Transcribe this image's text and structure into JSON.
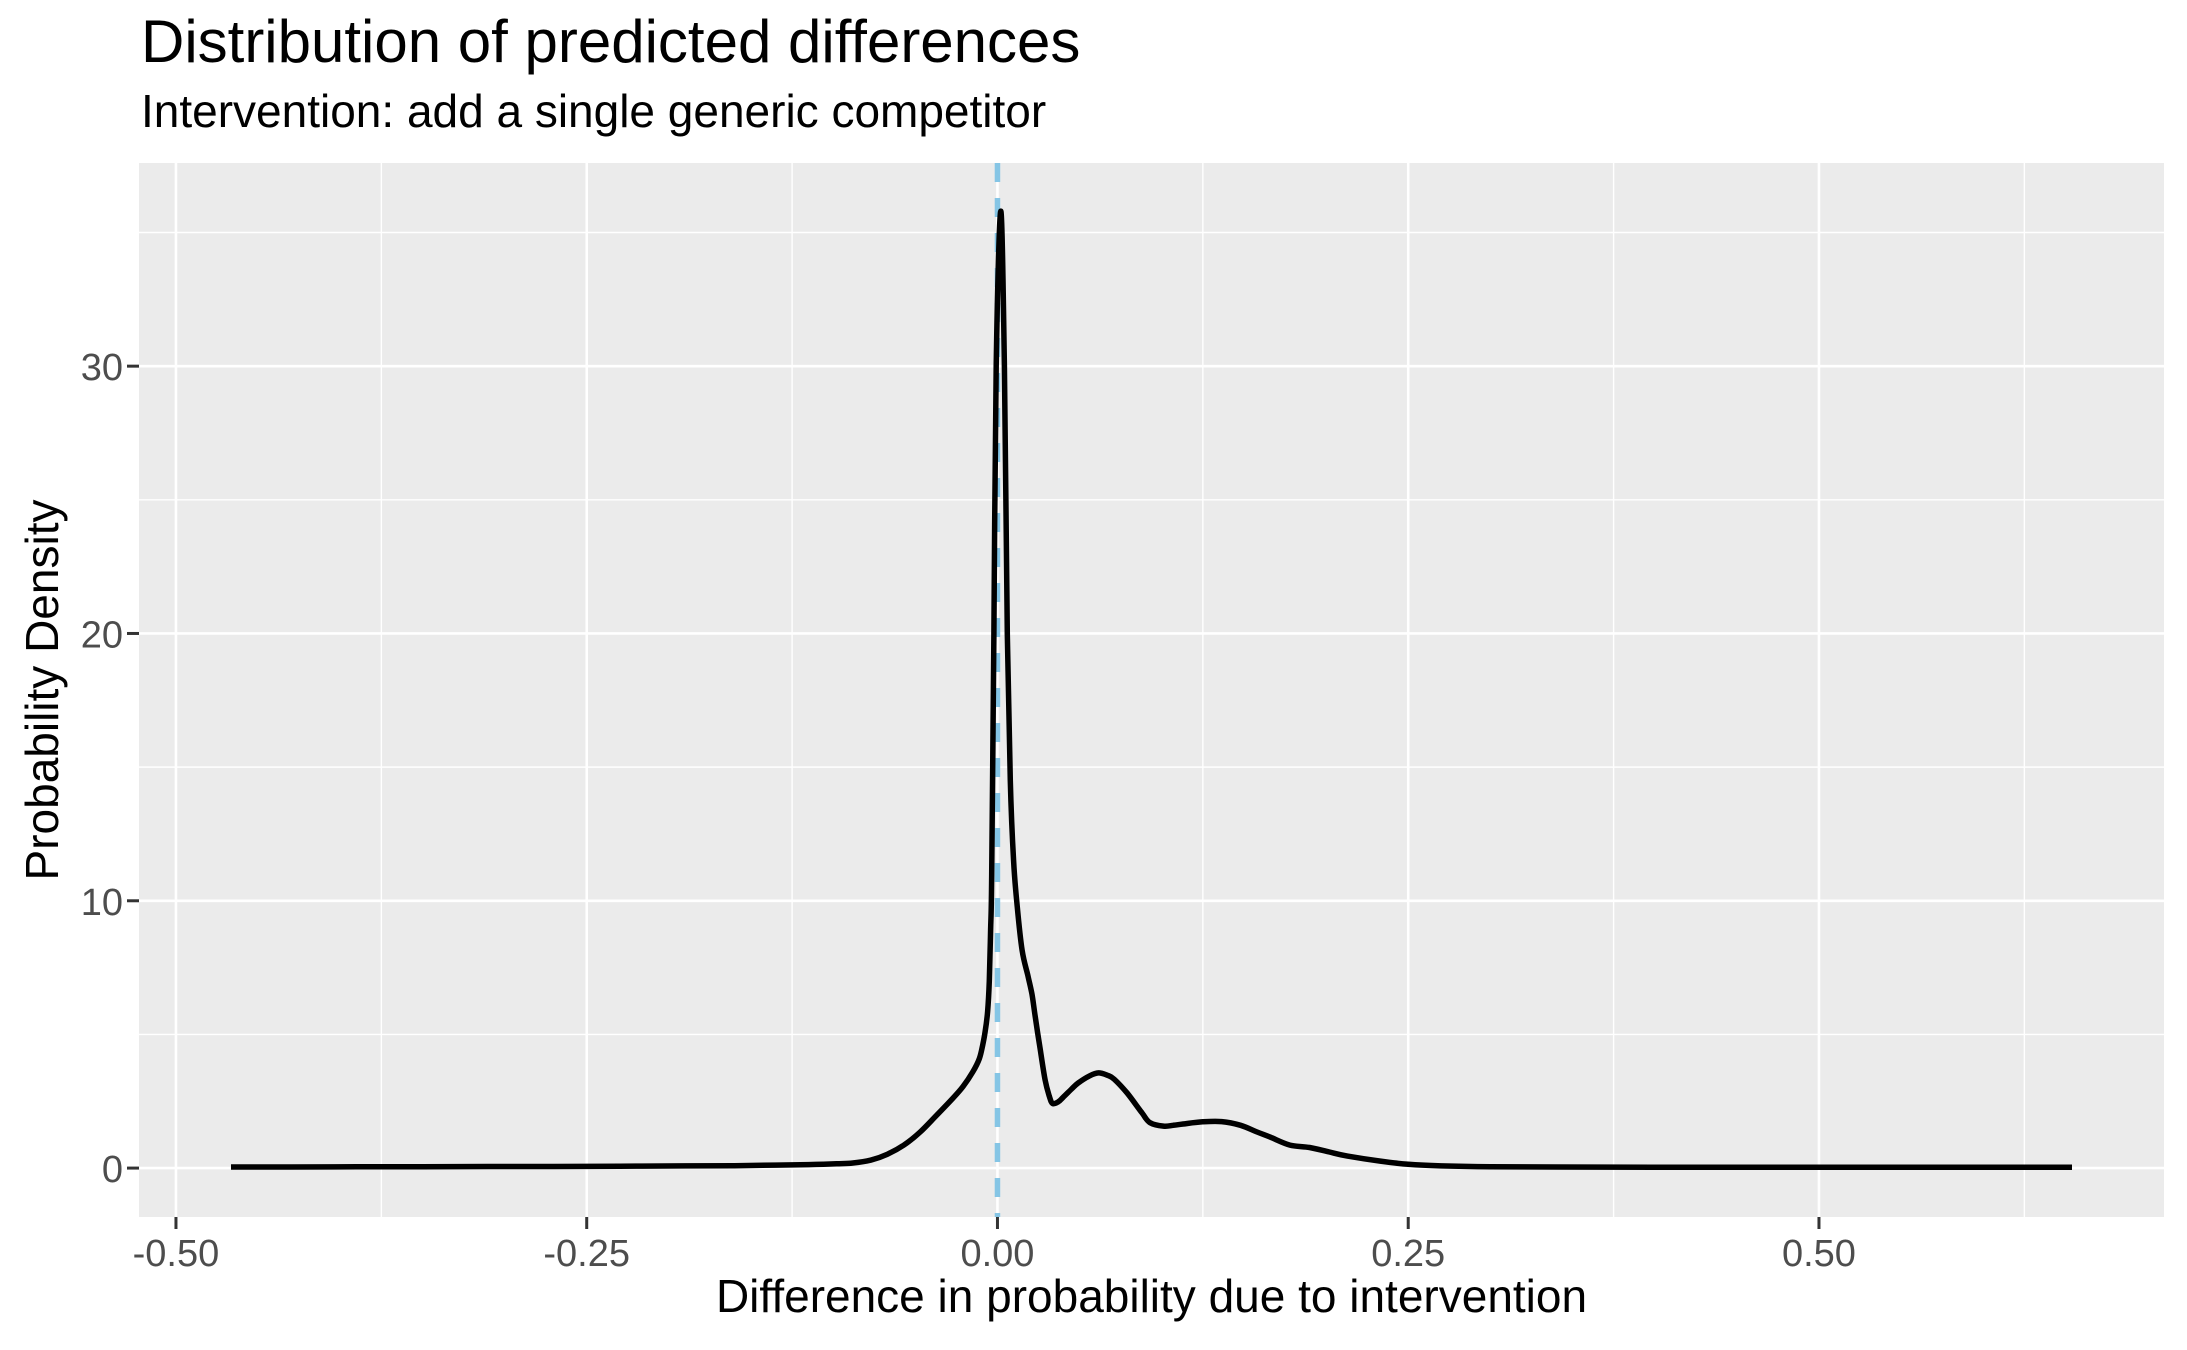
{
  "chart_data": {
    "type": "line",
    "title": "Distribution of predicted differences",
    "subtitle": "Intervention: add a single generic competitor",
    "xlabel": "Difference in probability due to intervention",
    "ylabel": "Probability Density",
    "legend": "none",
    "grid": "major-and-minor",
    "x_axis": {
      "tick_values": [
        -0.5,
        -0.25,
        0,
        0.25,
        0.5
      ],
      "tick_labels": [
        "-0.50",
        "-0.25",
        "0.00",
        "0.25",
        "0.50"
      ],
      "minor_tick_values": [
        -0.375,
        -0.125,
        0.125,
        0.375,
        0.625
      ],
      "lim": [
        -0.5225,
        0.71
      ]
    },
    "y_axis": {
      "tick_values": [
        0,
        10,
        20,
        30
      ],
      "tick_labels": [
        "0",
        "10",
        "20",
        "30"
      ],
      "minor_tick_values": [
        5,
        15,
        25,
        35
      ],
      "lim": [
        -1.83,
        37.6
      ]
    },
    "reference_line": {
      "x": 0,
      "linetype": "dashed",
      "color": "#85C5E5"
    },
    "peak": {
      "x": 0.002,
      "density": 35.8
    },
    "series": [
      {
        "name": "predicted-difference-density",
        "color": "#000000",
        "points": [
          [
            -0.4665,
            0.04
          ],
          [
            -0.43,
            0.04
          ],
          [
            -0.39,
            0.05
          ],
          [
            -0.35,
            0.05
          ],
          [
            -0.31,
            0.06
          ],
          [
            -0.27,
            0.06
          ],
          [
            -0.23,
            0.07
          ],
          [
            -0.19,
            0.08
          ],
          [
            -0.16,
            0.09
          ],
          [
            -0.135,
            0.11
          ],
          [
            -0.115,
            0.13
          ],
          [
            -0.098,
            0.16
          ],
          [
            -0.088,
            0.19
          ],
          [
            -0.077,
            0.3
          ],
          [
            -0.067,
            0.52
          ],
          [
            -0.057,
            0.86
          ],
          [
            -0.047,
            1.35
          ],
          [
            -0.037,
            1.98
          ],
          [
            -0.027,
            2.62
          ],
          [
            -0.021,
            3.05
          ],
          [
            -0.015,
            3.6
          ],
          [
            -0.011,
            4.1
          ],
          [
            -0.009,
            4.6
          ],
          [
            -0.0075,
            5.1
          ],
          [
            -0.006,
            5.85
          ],
          [
            -0.005,
            7.0
          ],
          [
            -0.0042,
            8.9
          ],
          [
            -0.0035,
            11.0
          ],
          [
            -0.0022,
            20.0
          ],
          [
            -0.0008,
            30.0
          ],
          [
            0.002,
            35.8
          ],
          [
            0.0042,
            30.0
          ],
          [
            0.006,
            20.0
          ],
          [
            0.0078,
            14.5
          ],
          [
            0.0098,
            11.5
          ],
          [
            0.012,
            9.8
          ],
          [
            0.015,
            8.15
          ],
          [
            0.0185,
            7.2
          ],
          [
            0.021,
            6.5
          ],
          [
            0.023,
            5.65
          ],
          [
            0.026,
            4.45
          ],
          [
            0.029,
            3.3
          ],
          [
            0.0315,
            2.7
          ],
          [
            0.0335,
            2.42
          ],
          [
            0.037,
            2.48
          ],
          [
            0.04,
            2.65
          ],
          [
            0.045,
            2.95
          ],
          [
            0.049,
            3.18
          ],
          [
            0.056,
            3.45
          ],
          [
            0.0615,
            3.56
          ],
          [
            0.067,
            3.47
          ],
          [
            0.071,
            3.33
          ],
          [
            0.079,
            2.8
          ],
          [
            0.088,
            2.06
          ],
          [
            0.0928,
            1.7
          ],
          [
            0.101,
            1.57
          ],
          [
            0.107,
            1.6
          ],
          [
            0.113,
            1.65
          ],
          [
            0.125,
            1.73
          ],
          [
            0.1365,
            1.74
          ],
          [
            0.148,
            1.6
          ],
          [
            0.158,
            1.35
          ],
          [
            0.166,
            1.16
          ],
          [
            0.178,
            0.86
          ],
          [
            0.19,
            0.77
          ],
          [
            0.202,
            0.6
          ],
          [
            0.213,
            0.45
          ],
          [
            0.233,
            0.26
          ],
          [
            0.25,
            0.14
          ],
          [
            0.27,
            0.08
          ],
          [
            0.3,
            0.05
          ],
          [
            0.34,
            0.04
          ],
          [
            0.4,
            0.03
          ],
          [
            0.47,
            0.03
          ],
          [
            0.56,
            0.03
          ],
          [
            0.654,
            0.03
          ]
        ]
      }
    ],
    "colors": {
      "panel_background": "#EBEBEB",
      "gridline": "#FFFFFF",
      "curve": "#000000",
      "reference_line": "#85C5E5",
      "tick_label": "#4D4D4D",
      "tick_mark": "#333333",
      "text": "#000000",
      "page_background": "#FFFFFF"
    }
  }
}
